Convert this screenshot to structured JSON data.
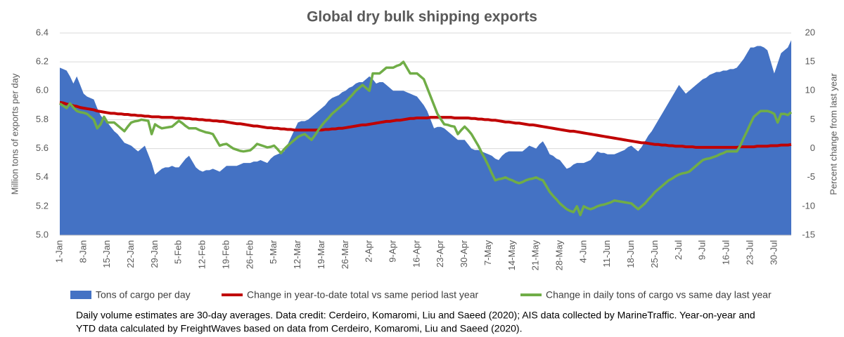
{
  "chart_data": {
    "type": "line",
    "title": "Global dry bulk shipping exports",
    "y_label": "Million tons of exports per day",
    "y2_label": "Percent change from last year",
    "note": [
      "Daily volume estimates are 30-day averages. Data credit: Cerdeiro, Komaromi, Liu and Saeed (2020); AIS data collected by MarineTraffic. Year-on-year and",
      "YTD data calculated by FreightWaves based on data from Cerdeiro, Komaromi, Liu and Saeed (2020)."
    ],
    "ylim": [
      5.0,
      6.4
    ],
    "yticks": [
      {
        "value": 5,
        "label": "5.0"
      },
      5.2,
      5.4,
      5.6,
      5.8,
      {
        "value": 6,
        "label": "6.0"
      },
      6.2,
      6.4
    ],
    "y2lim": [
      -15,
      20
    ],
    "y2ticks": [
      -15,
      -10,
      -5,
      0,
      5,
      10,
      15,
      20
    ],
    "grid": true,
    "legend": "bottom",
    "categories": [
      "1-Jan",
      null,
      null,
      null,
      null,
      null,
      null,
      "8-Jan",
      null,
      null,
      null,
      null,
      null,
      null,
      "15-Jan",
      null,
      null,
      null,
      null,
      null,
      null,
      "22-Jan",
      null,
      null,
      null,
      null,
      null,
      null,
      "29-Jan",
      null,
      null,
      null,
      null,
      null,
      null,
      "5-Feb",
      null,
      null,
      null,
      null,
      null,
      null,
      "12-Feb",
      null,
      null,
      null,
      null,
      null,
      null,
      "19-Feb",
      null,
      null,
      null,
      null,
      null,
      null,
      "26-Feb",
      null,
      null,
      null,
      null,
      null,
      null,
      "5-Mar",
      null,
      null,
      null,
      null,
      null,
      null,
      "12-Mar",
      null,
      null,
      null,
      null,
      null,
      null,
      "19-Mar",
      null,
      null,
      null,
      null,
      null,
      null,
      "26-Mar",
      null,
      null,
      null,
      null,
      null,
      null,
      "2-Apr",
      null,
      null,
      null,
      null,
      null,
      null,
      "9-Apr",
      null,
      null,
      null,
      null,
      null,
      null,
      "16-Apr",
      null,
      null,
      null,
      null,
      null,
      null,
      "23-Apr",
      null,
      null,
      null,
      null,
      null,
      null,
      "30-Apr",
      null,
      null,
      null,
      null,
      null,
      null,
      "7-May",
      null,
      null,
      null,
      null,
      null,
      null,
      "14-May",
      null,
      null,
      null,
      null,
      null,
      null,
      "21-May",
      null,
      null,
      null,
      null,
      null,
      null,
      "28-May",
      null,
      null,
      null,
      null,
      null,
      null,
      "4-Jun",
      null,
      null,
      null,
      null,
      null,
      null,
      "11-Jun",
      null,
      null,
      null,
      null,
      null,
      null,
      "18-Jun",
      null,
      null,
      null,
      null,
      null,
      null,
      "25-Jun",
      null,
      null,
      null,
      null,
      null,
      null,
      "2-Jul",
      null,
      null,
      null,
      null,
      null,
      null,
      "9-Jul",
      null,
      null,
      null,
      null,
      null,
      null,
      "16-Jul",
      null,
      null,
      null,
      null,
      null,
      null,
      "23-Jul",
      null,
      null,
      null,
      null,
      null,
      null,
      "30-Jul",
      null,
      null,
      null,
      null,
      null
    ],
    "series": [
      {
        "name": "Tons of cargo per day",
        "type": "area",
        "color": "#4472c4",
        "values": [
          6.16,
          6.15,
          6.14,
          6.1,
          6.05,
          6.1,
          6.04,
          5.98,
          5.96,
          5.95,
          5.94,
          5.88,
          5.83,
          5.8,
          5.78,
          5.75,
          5.72,
          5.7,
          5.67,
          5.64,
          5.63,
          5.62,
          5.6,
          5.58,
          5.6,
          5.62,
          5.56,
          5.5,
          5.42,
          5.44,
          5.46,
          5.47,
          5.47,
          5.48,
          5.47,
          5.47,
          5.5,
          5.53,
          5.55,
          5.51,
          5.47,
          5.45,
          5.44,
          5.45,
          5.45,
          5.46,
          5.45,
          5.44,
          5.46,
          5.48,
          5.48,
          5.48,
          5.48,
          5.49,
          5.5,
          5.5,
          5.5,
          5.51,
          5.51,
          5.52,
          5.51,
          5.5,
          5.53,
          5.55,
          5.56,
          5.57,
          5.58,
          5.63,
          5.68,
          5.73,
          5.78,
          5.79,
          5.79,
          5.8,
          5.82,
          5.84,
          5.86,
          5.88,
          5.9,
          5.93,
          5.95,
          5.96,
          5.97,
          5.99,
          6.0,
          6.02,
          6.03,
          6.05,
          6.06,
          6.06,
          6.08,
          6.1,
          6.08,
          6.05,
          6.06,
          6.06,
          6.04,
          6.02,
          6.0,
          6.0,
          6.0,
          6.0,
          5.99,
          5.98,
          5.97,
          5.96,
          5.93,
          5.9,
          5.86,
          5.8,
          5.74,
          5.75,
          5.75,
          5.74,
          5.72,
          5.7,
          5.68,
          5.66,
          5.66,
          5.66,
          5.63,
          5.6,
          5.59,
          5.59,
          5.58,
          5.57,
          5.56,
          5.55,
          5.53,
          5.52,
          5.55,
          5.57,
          5.58,
          5.58,
          5.58,
          5.58,
          5.58,
          5.6,
          5.62,
          5.61,
          5.6,
          5.63,
          5.65,
          5.61,
          5.56,
          5.55,
          5.53,
          5.52,
          5.49,
          5.46,
          5.47,
          5.49,
          5.5,
          5.5,
          5.5,
          5.51,
          5.52,
          5.55,
          5.58,
          5.57,
          5.57,
          5.56,
          5.56,
          5.56,
          5.57,
          5.58,
          5.59,
          5.61,
          5.62,
          5.6,
          5.58,
          5.61,
          5.65,
          5.69,
          5.72,
          5.76,
          5.8,
          5.84,
          5.88,
          5.92,
          5.96,
          6.0,
          6.04,
          6.01,
          5.98,
          6.0,
          6.02,
          6.04,
          6.06,
          6.08,
          6.09,
          6.11,
          6.12,
          6.13,
          6.13,
          6.14,
          6.14,
          6.15,
          6.15,
          6.16,
          6.19,
          6.22,
          6.26,
          6.3,
          6.3,
          6.31,
          6.31,
          6.3,
          6.28,
          6.2,
          6.12,
          6.19,
          6.26,
          6.28,
          6.3,
          6.35
        ]
      },
      {
        "name": "Change in year-to-date total vs same period last year",
        "type": "line",
        "axis": "y2",
        "color": "#c00000",
        "values": [
          8.0,
          7.9,
          7.7,
          7.6,
          7.4,
          7.3,
          7.1,
          7.0,
          6.9,
          6.8,
          6.7,
          6.5,
          6.4,
          6.3,
          6.2,
          6.1,
          6.1,
          6.0,
          6.0,
          5.9,
          5.9,
          5.8,
          5.8,
          5.7,
          5.7,
          5.6,
          5.6,
          5.5,
          5.5,
          5.5,
          5.4,
          5.4,
          5.4,
          5.4,
          5.3,
          5.3,
          5.3,
          5.2,
          5.2,
          5.1,
          5.1,
          5.0,
          5.0,
          4.9,
          4.9,
          4.8,
          4.8,
          4.7,
          4.7,
          4.6,
          4.5,
          4.4,
          4.3,
          4.3,
          4.2,
          4.1,
          4.0,
          3.9,
          3.9,
          3.8,
          3.7,
          3.6,
          3.6,
          3.5,
          3.5,
          3.4,
          3.4,
          3.3,
          3.3,
          3.2,
          3.2,
          3.2,
          3.2,
          3.2,
          3.2,
          3.2,
          3.2,
          3.2,
          3.3,
          3.3,
          3.4,
          3.4,
          3.5,
          3.5,
          3.6,
          3.7,
          3.8,
          3.9,
          4.0,
          4.1,
          4.1,
          4.2,
          4.3,
          4.4,
          4.5,
          4.6,
          4.7,
          4.7,
          4.8,
          4.9,
          4.9,
          5.0,
          5.1,
          5.2,
          5.2,
          5.3,
          5.3,
          5.3,
          5.3,
          5.4,
          5.4,
          5.4,
          5.4,
          5.4,
          5.4,
          5.4,
          5.3,
          5.3,
          5.3,
          5.3,
          5.3,
          5.2,
          5.2,
          5.1,
          5.1,
          5.0,
          5.0,
          4.9,
          4.9,
          4.8,
          4.7,
          4.6,
          4.6,
          4.5,
          4.4,
          4.4,
          4.3,
          4.2,
          4.1,
          4.1,
          4.0,
          3.9,
          3.8,
          3.7,
          3.6,
          3.5,
          3.4,
          3.3,
          3.2,
          3.1,
          3.0,
          3.0,
          2.9,
          2.8,
          2.7,
          2.6,
          2.5,
          2.4,
          2.3,
          2.2,
          2.1,
          2.0,
          1.9,
          1.8,
          1.7,
          1.6,
          1.5,
          1.4,
          1.3,
          1.2,
          1.1,
          1.0,
          1.0,
          0.9,
          0.8,
          0.7,
          0.7,
          0.6,
          0.6,
          0.5,
          0.5,
          0.4,
          0.4,
          0.4,
          0.3,
          0.3,
          0.3,
          0.2,
          0.2,
          0.2,
          0.2,
          0.2,
          0.2,
          0.2,
          0.2,
          0.2,
          0.2,
          0.2,
          0.2,
          0.2,
          0.3,
          0.3,
          0.3,
          0.3,
          0.3,
          0.4,
          0.4,
          0.4,
          0.4,
          0.5,
          0.5,
          0.5,
          0.6,
          0.6,
          0.6,
          0.7
        ]
      },
      {
        "name": "Change in daily tons of cargo vs same day last year",
        "type": "line",
        "axis": "y2",
        "color": "#70ad47",
        "values": [
          7.8,
          7.4,
          7.0,
          7.8,
          7.1,
          6.5,
          6.3,
          6.2,
          6.0,
          5.5,
          5.0,
          3.5,
          4.2,
          5.5,
          4.5,
          4.5,
          4.5,
          4.0,
          3.5,
          3.0,
          3.8,
          4.5,
          4.7,
          4.8,
          5.0,
          4.9,
          4.8,
          2.5,
          4.2,
          3.8,
          3.5,
          3.6,
          3.7,
          3.8,
          4.3,
          4.8,
          4.4,
          3.9,
          3.5,
          3.5,
          3.5,
          3.2,
          3.0,
          2.8,
          2.7,
          2.5,
          1.5,
          0.5,
          0.7,
          0.8,
          0.4,
          0.0,
          -0.2,
          -0.4,
          -0.5,
          -0.4,
          -0.3,
          0.2,
          0.8,
          0.6,
          0.4,
          0.2,
          0.3,
          0.5,
          -0.1,
          -0.8,
          -0.1,
          0.5,
          1.0,
          1.5,
          2.0,
          2.3,
          2.5,
          2.0,
          1.5,
          2.3,
          3.2,
          4.0,
          4.7,
          5.3,
          6.0,
          6.5,
          7.0,
          7.5,
          8.0,
          8.7,
          9.3,
          10.0,
          10.5,
          11.0,
          10.5,
          10.0,
          13.0,
          13.0,
          13.0,
          13.5,
          14.0,
          14.0,
          14.0,
          14.3,
          14.5,
          15.0,
          14.0,
          13.0,
          13.0,
          13.0,
          12.5,
          12.0,
          10.5,
          9.0,
          7.5,
          6.0,
          5.1,
          4.2,
          4.1,
          3.9,
          3.8,
          2.5,
          3.2,
          3.8,
          3.2,
          2.5,
          1.5,
          0.5,
          -0.7,
          -1.8,
          -3.0,
          -4.3,
          -5.5,
          -5.3,
          -5.2,
          -5.0,
          -5.3,
          -5.5,
          -5.8,
          -6.0,
          -5.8,
          -5.5,
          -5.3,
          -5.2,
          -5.0,
          -5.3,
          -5.5,
          -6.5,
          -7.5,
          -8.2,
          -8.8,
          -9.5,
          -10.0,
          -10.5,
          -10.8,
          -11.0,
          -10.0,
          -11.5,
          -10.0,
          -10.3,
          -10.5,
          -10.3,
          -10.0,
          -9.8,
          -9.7,
          -9.5,
          -9.3,
          -9.0,
          -9.1,
          -9.2,
          -9.3,
          -9.4,
          -9.5,
          -10.0,
          -10.5,
          -10.0,
          -9.5,
          -8.8,
          -8.2,
          -7.5,
          -7.0,
          -6.5,
          -6.0,
          -5.5,
          -5.2,
          -4.8,
          -4.5,
          -4.3,
          -4.2,
          -4.0,
          -3.5,
          -3.0,
          -2.5,
          -2.0,
          -1.8,
          -1.7,
          -1.5,
          -1.3,
          -1.0,
          -0.8,
          -0.5,
          -0.5,
          -0.5,
          -0.5,
          0.5,
          1.8,
          3.0,
          4.3,
          5.5,
          6.0,
          6.5,
          6.5,
          6.5,
          6.3,
          6.0,
          4.5,
          6.0,
          6.0,
          5.8,
          6.3
        ]
      }
    ]
  }
}
